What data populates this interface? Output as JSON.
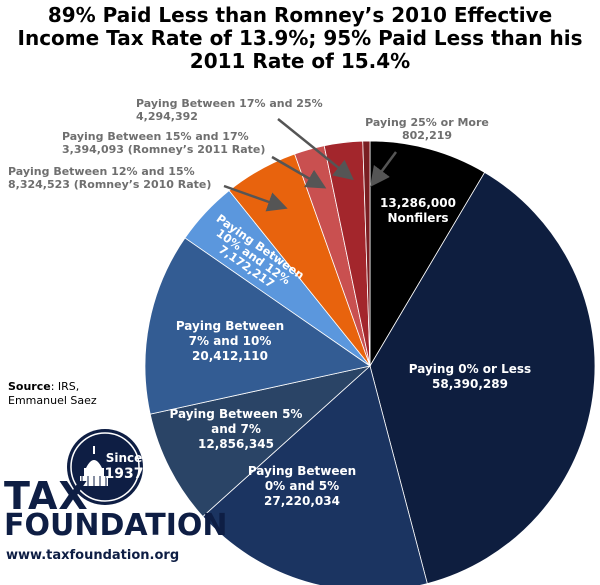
{
  "title": {
    "line1": "89% Paid Less than Romney’s 2010 Effective",
    "line2": "Income Tax Rate of 13.9%; 95% Paid Less than his",
    "line3": "2011 Rate of 15.4%"
  },
  "source": {
    "label": "Source",
    "text1": ": IRS,",
    "text2": "Emmanuel Saez"
  },
  "logo": {
    "since": "Since",
    "year": "1937",
    "word1": "TAX",
    "word2": "FOUNDATION",
    "url": "www.taxfoundation.org"
  },
  "colors": {
    "nonfilers": "#000000",
    "zero_or_less": "#0e1e3f",
    "zero_to_5": "#1b3461",
    "five_to_7": "#2a4466",
    "seven_to_10": "#335c93",
    "ten_to_12": "#5b97dd",
    "twelve_to_15": "#e8630d",
    "fifteen_to_17": "#c95050",
    "seventeen_to_25": "#a3262c",
    "twentyfive_plus": "#7a1e22"
  },
  "chart_data": {
    "type": "pie",
    "slices": [
      {
        "name": "Nonfilers",
        "value": 13286000,
        "label": [
          "13,286,000",
          "Nonfilers"
        ]
      },
      {
        "name": "Paying 0% or Less",
        "value": 58390289,
        "label": [
          "Paying 0% or Less",
          "58,390,289"
        ]
      },
      {
        "name": "Paying Between 0% and 5%",
        "value": 27220034,
        "label": [
          "Paying Between",
          "0% and 5%",
          "27,220,034"
        ]
      },
      {
        "name": "Paying Between 5% and 7%",
        "value": 12856345,
        "label": [
          "Paying Between 5%",
          "and 7%",
          "12,856,345"
        ]
      },
      {
        "name": "Paying Between 7% and 10%",
        "value": 20412110,
        "label": [
          "Paying Between",
          "7% and 10%",
          "20,412,110"
        ]
      },
      {
        "name": "Paying Between 10% and 12%",
        "value": 7172217,
        "label": [
          "Paying Between",
          "10% and 12%",
          "7,172,217"
        ]
      },
      {
        "name": "Paying Between 12% and 15%",
        "value": 8324523,
        "label": [
          "Paying Between 12% and 15%",
          "8,324,523 (Romney’s 2010 Rate)"
        ]
      },
      {
        "name": "Paying Between 15% and 17%",
        "value": 3394093,
        "label": [
          "Paying Between 15% and 17%",
          "3,394,093 (Romney’s 2011 Rate)"
        ]
      },
      {
        "name": "Paying Between 17% and 25%",
        "value": 4294392,
        "label": [
          "Paying Between 17% and 25%",
          "4,294,392"
        ]
      },
      {
        "name": "Paying 25% or More",
        "value": 802219,
        "label": [
          "Paying 25% or More",
          "802,219"
        ]
      }
    ]
  }
}
